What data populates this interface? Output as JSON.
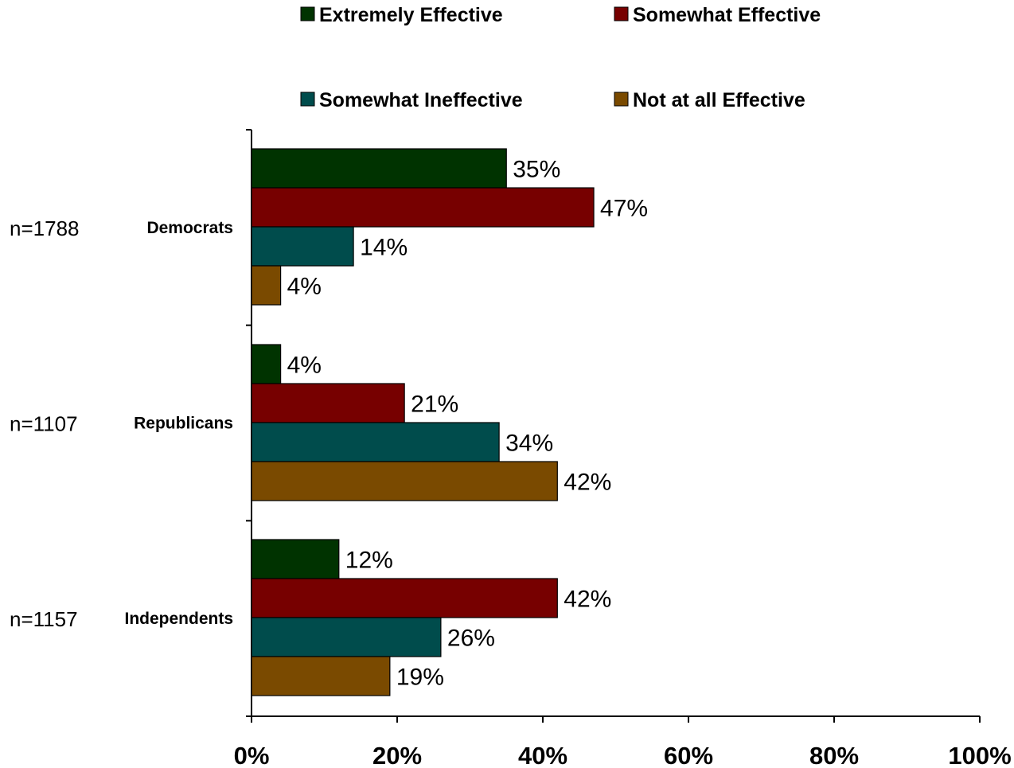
{
  "chart_data": {
    "type": "bar",
    "orientation": "horizontal",
    "title": "",
    "xlabel": "",
    "ylabel": "",
    "xlim": [
      0,
      100
    ],
    "x_ticks": [
      "0%",
      "20%",
      "40%",
      "60%",
      "80%",
      "100%"
    ],
    "grid": false,
    "legend_position": "top",
    "categories": [
      "Democrats",
      "Republicans",
      "Independents"
    ],
    "sample_sizes": [
      "n=1788",
      "n=1107",
      "n=1157"
    ],
    "series": [
      {
        "name": "Extremely Effective",
        "color": "#003300",
        "values": [
          35,
          4,
          12
        ],
        "labels": [
          "35%",
          "4%",
          "12%"
        ]
      },
      {
        "name": "Somewhat Effective",
        "color": "#770000",
        "values": [
          47,
          21,
          42
        ],
        "labels": [
          "47%",
          "21%",
          "42%"
        ]
      },
      {
        "name": "Somewhat Ineffective",
        "color": "#004C4C",
        "values": [
          14,
          34,
          26
        ],
        "labels": [
          "14%",
          "34%",
          "26%"
        ]
      },
      {
        "name": "Not at all Effective",
        "color": "#7A4A00",
        "values": [
          4,
          42,
          19
        ],
        "labels": [
          "4%",
          "42%",
          "19%"
        ]
      }
    ]
  }
}
